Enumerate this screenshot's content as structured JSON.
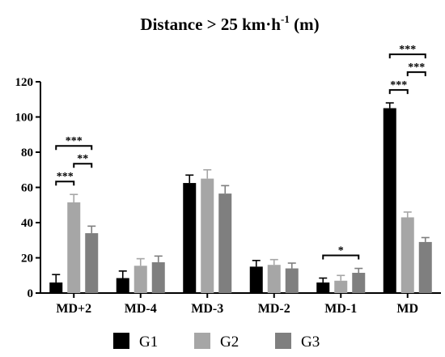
{
  "chart_data": {
    "type": "bar",
    "title_main": "Distance > 25 km·h",
    "title_sup": "-1",
    "title_unit": " (m)",
    "categories": [
      "MD+2",
      "MD-4",
      "MD-3",
      "MD-2",
      "MD-1",
      "MD"
    ],
    "ylim": [
      0,
      120
    ],
    "yticks": [
      0,
      20,
      40,
      60,
      80,
      100,
      120
    ],
    "grid": false,
    "legend_position": "bottom",
    "series": [
      {
        "name": "G1",
        "color": "#000000",
        "values": [
          6,
          8.5,
          62.5,
          15,
          6,
          105
        ],
        "errors": [
          4.5,
          4,
          4.5,
          3.5,
          2.5,
          3
        ]
      },
      {
        "name": "G2",
        "color": "#a6a6a6",
        "values": [
          51.5,
          15.5,
          65,
          16,
          7,
          43
        ],
        "errors": [
          4.5,
          4,
          5,
          3,
          3,
          3
        ]
      },
      {
        "name": "G3",
        "color": "#7f7f7f",
        "values": [
          34,
          17.5,
          56.5,
          14,
          11.5,
          29
        ],
        "errors": [
          4,
          3.5,
          4.5,
          3,
          2.5,
          2.5
        ]
      }
    ],
    "annotations": [
      {
        "category": "MD+2",
        "from": "G1",
        "to": "G2",
        "label": "***",
        "level": 0
      },
      {
        "category": "MD+2",
        "from": "G2",
        "to": "G3",
        "label": "**",
        "level": 1
      },
      {
        "category": "MD+2",
        "from": "G1",
        "to": "G3",
        "label": "***",
        "level": 2
      },
      {
        "category": "MD-1",
        "from": "G1",
        "to": "G3",
        "label": "*",
        "level": 0
      },
      {
        "category": "MD",
        "from": "G1",
        "to": "G2",
        "label": "***",
        "level": 0
      },
      {
        "category": "MD",
        "from": "G2",
        "to": "G3",
        "label": "***",
        "level": 1
      },
      {
        "category": "MD",
        "from": "G1",
        "to": "G3",
        "label": "***",
        "level": 2
      }
    ]
  }
}
